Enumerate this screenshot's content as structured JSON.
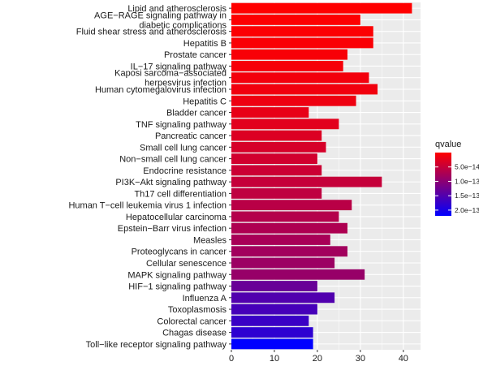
{
  "chart_data": {
    "type": "bar",
    "orientation": "horizontal",
    "categories": [
      "Lipid and atherosclerosis",
      "AGE−RAGE signaling pathway in diabetic complications",
      "Fluid shear stress and atherosclerosis",
      "Hepatitis B",
      "Prostate cancer",
      "IL−17 signaling pathway",
      "Kaposi sarcoma−associated herpesvirus infection",
      "Human cytomegalovirus infection",
      "Hepatitis C",
      "Bladder cancer",
      "TNF signaling pathway",
      "Pancreatic cancer",
      "Small cell lung cancer",
      "Non−small cell lung cancer",
      "Endocrine resistance",
      "PI3K−Akt signaling pathway",
      "Th17 cell differentiation",
      "Human T−cell leukemia virus 1 infection",
      "Hepatocellular carcinoma",
      "Epstein−Barr virus infection",
      "Measles",
      "Proteoglycans in cancer",
      "Cellular senescence",
      "MAPK signaling pathway",
      "HIF−1 signaling pathway",
      "Influenza A",
      "Toxoplasmosis",
      "Colorectal cancer",
      "Chagas disease",
      "Toll−like receptor signaling pathway"
    ],
    "values": [
      42,
      30,
      33,
      33,
      27,
      26,
      32,
      34,
      29,
      18,
      25,
      21,
      22,
      20,
      21,
      35,
      21,
      28,
      25,
      27,
      23,
      27,
      24,
      31,
      20,
      24,
      20,
      18,
      19,
      19
    ],
    "qvalues": [
      2e-16,
      2e-15,
      3e-15,
      4e-15,
      6e-15,
      8e-15,
      1e-14,
      1.2e-14,
      1.5e-14,
      2e-14,
      2.5e-14,
      3e-14,
      3.5e-14,
      4e-14,
      4.5e-14,
      5e-14,
      5.5e-14,
      6e-14,
      6.5e-14,
      7e-14,
      7.5e-14,
      8e-14,
      8.5e-14,
      9e-14,
      1.3e-13,
      1.5e-13,
      1.6e-13,
      1.7e-13,
      1.8e-13,
      2.2e-13
    ],
    "xlim": [
      0,
      44
    ],
    "xticks": [
      0,
      10,
      20,
      30,
      40
    ],
    "xlabel": "",
    "ylabel": "",
    "title": "",
    "grid": true,
    "legend": {
      "title": "qvalue",
      "placement": "right",
      "range": [
        0,
        2.2e-13
      ],
      "ticks": [
        5e-14,
        1e-13,
        1.5e-13,
        2e-13
      ],
      "tick_labels": [
        "5.0e−14",
        "1.0e−13",
        "1.5e−13",
        "2.0e−13"
      ],
      "colors": {
        "low": "#ff0000",
        "high": "#0000ff"
      }
    },
    "colors": {
      "panel_background": "#ebebeb",
      "grid": "#ffffff"
    }
  }
}
